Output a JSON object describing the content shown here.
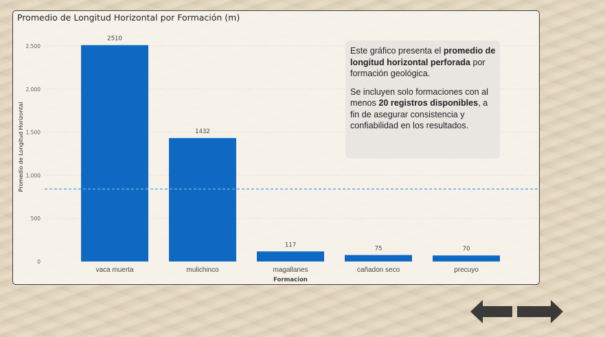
{
  "chart_data": {
    "type": "bar",
    "title": "Promedio de Longitud Horizontal por Formación (m)",
    "xlabel": "Formacion",
    "ylabel": "Promedio de Longitud Horizontal",
    "categories": [
      "vaca muerta",
      "mulichinco",
      "magallanes",
      "cañadon seco",
      "precuyo"
    ],
    "values": [
      2510,
      1432,
      117,
      75,
      70
    ],
    "data_labels": [
      "2510",
      "1432",
      "117",
      "75",
      "70"
    ],
    "ylim": [
      0,
      2500
    ],
    "yticks": [
      0,
      500,
      1000,
      1500,
      2000,
      2500
    ],
    "ytick_labels": [
      "0",
      "500",
      "1.000",
      "1.500",
      "2.000",
      "2.500"
    ],
    "reference_line": 841,
    "bar_color": "#0f69c3",
    "reference_line_color": "#61a9e6",
    "grid": "horizontal dotted",
    "legend": "none"
  },
  "note": {
    "p1_pre": "Este gráfico presenta el ",
    "p1_bold": "promedio de longitud horizontal perforada",
    "p1_post": " por formación geológica.",
    "p2_pre": "Se incluyen solo formaciones con al menos ",
    "p2_bold": "20 registros disponibles",
    "p2_post": ", a fin de asegurar consistencia y confiabilidad en los resultados."
  },
  "nav": {
    "back_icon": "arrow-left-icon",
    "forward_icon": "arrow-right-icon",
    "color": "#3a3a38"
  }
}
